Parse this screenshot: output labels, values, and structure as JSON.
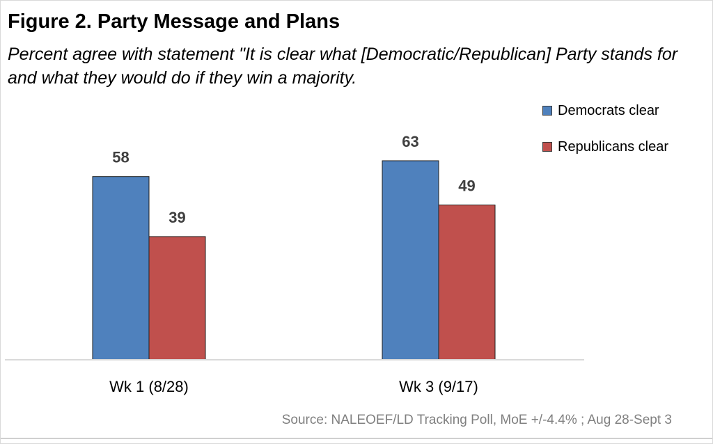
{
  "figure": {
    "title": "Figure 2. Party Message and Plans",
    "subtitle": "Percent agree with statement \"It is clear what [Democratic/Republican] Party stands for and what they would do if they win a majority.",
    "source": "Source: NALEOEF/LD Tracking Poll, MoE +/-4.4% ; Aug 28-Sept 3"
  },
  "colors": {
    "democrats": "#4f81bd",
    "republicans": "#c0504d",
    "axis": "#d9d9d9",
    "value_label": "#404040"
  },
  "chart_data": {
    "type": "bar",
    "title": "Figure 2. Party Message and Plans",
    "categories": [
      "Wk 1 (8/28)",
      "Wk 3 (9/17)"
    ],
    "series": [
      {
        "name": "Democrats clear",
        "values": [
          58,
          63
        ]
      },
      {
        "name": "Republicans clear",
        "values": [
          39,
          49
        ]
      }
    ],
    "ylim": [
      0,
      100
    ],
    "grid": false,
    "legend": "top-right",
    "data_labels": true
  }
}
